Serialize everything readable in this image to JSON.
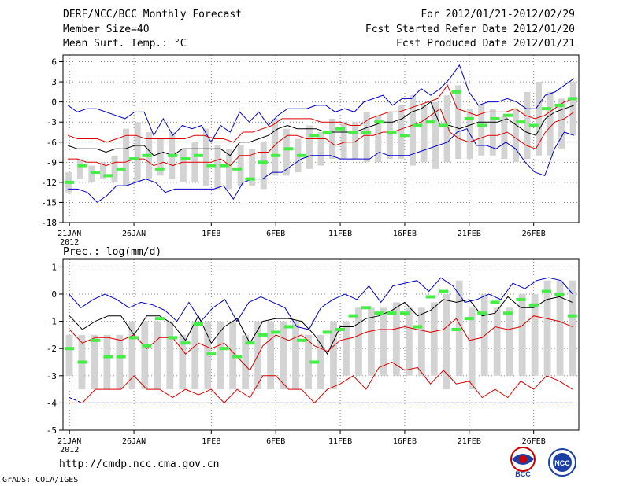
{
  "header": {
    "title": "DERF/NCC/BCC Monthly Forecast",
    "member_size": "Member Size=40",
    "variable": "Mean Surf. Temp.: °C",
    "period": "For 2012/01/21-2012/02/29",
    "start_ref": "Fcst Started Refer Date 2012/01/20",
    "produced": "Fcst Produced Date 2012/01/21"
  },
  "footer": {
    "url": "http://cmdp.ncc.cma.gov.cn",
    "credit": "GrADS: COLA/IGES",
    "logo_left": "BCC",
    "logo_right": "NCC"
  },
  "colors": {
    "envelope": "#0000cc",
    "spread": "#dd0000",
    "mean": "#000000",
    "box": "#d3d3d3",
    "obs": "#44ee44",
    "grid": "#888888"
  },
  "chart_data": [
    {
      "type": "box-ensemble",
      "title": "Mean Surf. Temp.: °C",
      "xlabel": "",
      "ylabel": "",
      "ylim": [
        -18,
        7
      ],
      "yticks": [
        6,
        3,
        0,
        -3,
        -6,
        -9,
        -12,
        -15,
        -18
      ],
      "xlim": [
        0.5,
        40.5
      ],
      "xticks": [
        {
          "day": 1,
          "label": "21JAN",
          "sub": "2012"
        },
        {
          "day": 6,
          "label": "26JAN"
        },
        {
          "day": 12,
          "label": "1FEB"
        },
        {
          "day": 17,
          "label": "6FEB"
        },
        {
          "day": 22,
          "label": "11FEB"
        },
        {
          "day": 27,
          "label": "16FEB"
        },
        {
          "day": 32,
          "label": "21FEB"
        },
        {
          "day": 37,
          "label": "26FEB"
        }
      ],
      "series": [
        {
          "name": "ensemble-max",
          "color": "#0000cc",
          "values": [
            -0.5,
            -1.5,
            -1,
            -1,
            -1.5,
            -2,
            -2.5,
            -1.5,
            -1.5,
            -5,
            -2.5,
            -5,
            -3.5,
            -4,
            -3.5,
            -6,
            -3.5,
            -4.5,
            -1.5,
            -3,
            -1.5,
            -3.5,
            -2,
            -1,
            -1,
            -1,
            -0.5,
            -0.5,
            -1.5,
            -1,
            -1.5,
            0,
            0.5,
            1,
            -0.5,
            0.5,
            0.5,
            2,
            1,
            2,
            3.5,
            5.5,
            1.5,
            -0.5,
            0,
            0,
            0.5,
            0,
            -1,
            -1,
            1,
            1.5,
            2.5,
            3.5
          ]
        },
        {
          "name": "ensemble-min",
          "color": "#0000cc",
          "values": [
            -13,
            -13,
            -13.5,
            -15,
            -14,
            -12.5,
            -12.5,
            -12,
            -11.5,
            -12,
            -13.5,
            -13,
            -13,
            -13,
            -13,
            -13,
            -12.5,
            -14.5,
            -12,
            -11.5,
            -11.5,
            -10.5,
            -10.5,
            -9.5,
            -8.5,
            -8,
            -8,
            -8,
            -8.5,
            -8.5,
            -8.5,
            -8.5,
            -7.5,
            -8,
            -8,
            -8,
            -7.5,
            -7,
            -6.5,
            -6,
            -4.5,
            -4,
            -6.5,
            -6.5,
            -7,
            -6,
            -7,
            -9,
            -10.5,
            -11,
            -7,
            -4.5,
            -5
          ]
        },
        {
          "name": "spread-upper",
          "color": "#dd0000",
          "values": [
            -5,
            -5.5,
            -5.5,
            -5.5,
            -6,
            -5.5,
            -5,
            -5,
            -5.5,
            -5.5,
            -5.5,
            -5.5,
            -5.5,
            -5,
            -5,
            -5.5,
            -5.5,
            -6,
            -4.5,
            -4.5,
            -4,
            -3.5,
            -2.5,
            -2.5,
            -2.5,
            -2.5,
            -3,
            -3,
            -3,
            -3.5,
            -3.5,
            -2.5,
            -2,
            -1.5,
            -1.5,
            -1,
            -0.5,
            0,
            0.5,
            2.5,
            -1,
            -1.5,
            -2,
            -1.5,
            -1.5,
            -1.5,
            -1,
            -2,
            -2.5,
            -2,
            -1,
            0,
            0.5
          ]
        },
        {
          "name": "spread-lower",
          "color": "#dd0000",
          "values": [
            -8.5,
            -8.5,
            -9,
            -9,
            -9.5,
            -9,
            -9,
            -8.5,
            -8.5,
            -9.5,
            -9,
            -9.5,
            -9,
            -9,
            -9,
            -9,
            -8.5,
            -9.5,
            -8,
            -8,
            -7.5,
            -7.5,
            -6,
            -5,
            -5,
            -5.5,
            -5.5,
            -5.5,
            -6.5,
            -6,
            -6,
            -5,
            -5,
            -4.5,
            -4.5,
            -4,
            -3.5,
            -3,
            -2,
            -1,
            -4.5,
            -5.5,
            -6,
            -5.5,
            -5,
            -5,
            -4.5,
            -5.5,
            -6.5,
            -7,
            -4.5,
            -3,
            -2.5,
            -1.5
          ]
        },
        {
          "name": "ensemble-mean",
          "color": "#000000",
          "values": [
            -6.5,
            -7,
            -7,
            -7,
            -7.5,
            -7,
            -7,
            -6.5,
            -6.5,
            -8,
            -7.5,
            -8,
            -7,
            -7,
            -7,
            -7,
            -7,
            -8,
            -6,
            -6,
            -5.5,
            -5,
            -4,
            -3.5,
            -4,
            -4,
            -4,
            -4.5,
            -4.5,
            -4.5,
            -4.5,
            -4,
            -3.5,
            -3,
            -3,
            -2.5,
            -1.5,
            -1,
            0,
            -3.5,
            -3.5,
            -4,
            -3.5,
            -3,
            -3,
            -3,
            -2.5,
            -3.5,
            -4.5,
            -5,
            -2.5,
            -1.5,
            -1,
            -0.5
          ]
        },
        {
          "name": "box-high",
          "values": [
            -10.5,
            -8.5,
            -9.5,
            -9,
            -8,
            -4,
            -3,
            -4.5,
            -5.5,
            -4.5,
            -7,
            -6,
            -4,
            -6.5,
            -7,
            -6.5,
            -7,
            -6,
            -2.5,
            -4,
            -5.5,
            -3.5,
            -4.5,
            -2.5,
            -3,
            -3,
            -1.5,
            -2,
            -1.5,
            -0.5,
            1,
            -0.5,
            0,
            1,
            2.5,
            -1,
            -0.5,
            -1,
            -2,
            -1,
            1.5,
            3,
            1.5,
            0.5,
            3
          ]
        },
        {
          "name": "box-low",
          "values": [
            -13.5,
            -11.5,
            -12,
            -11.5,
            -12,
            -12.5,
            -12,
            -11.5,
            -11,
            -11.5,
            -12,
            -12,
            -12.5,
            -13,
            -13,
            -12.5,
            -12.5,
            -13,
            -11,
            -11,
            -10.5,
            -10,
            -9.5,
            -8.5,
            -8.5,
            -8.5,
            -9,
            -9,
            -8.5,
            -8.5,
            -9.5,
            -9,
            -10,
            -9,
            -8.5,
            -8.5,
            -8,
            -8,
            -8.5,
            -9,
            -8.5,
            -8,
            -8,
            -7,
            -5,
            -6.5,
            -6,
            -4.5,
            -4.5
          ]
        },
        {
          "name": "observed",
          "color": "#44ee44",
          "values": [
            -12,
            -9.5,
            -10.5,
            -11,
            -10,
            -8.5,
            -8,
            -10,
            -8,
            -8.5,
            -8,
            -9.5,
            -9.5,
            -10,
            -11.5,
            -9,
            -8,
            -7,
            -8,
            -5,
            -4.5,
            -4,
            -4.5,
            -4.5,
            -3,
            -4.5,
            -5,
            -3.5,
            -3,
            -3.5,
            1.5,
            -2.5,
            -3.5,
            -2.5,
            -2,
            -3,
            -3.5,
            -1,
            -0.5,
            0.5
          ]
        }
      ]
    },
    {
      "type": "box-ensemble",
      "title": "Prec.: log(mm/d)",
      "xlabel": "",
      "ylabel": "",
      "ylim": [
        -5,
        1.3
      ],
      "yticks": [
        1,
        0,
        -1,
        -2,
        -3,
        -4,
        -5
      ],
      "xlim": [
        0.5,
        40.5
      ],
      "xticks": [
        {
          "day": 1,
          "label": "21JAN",
          "sub": "2012"
        },
        {
          "day": 6,
          "label": "26JAN"
        },
        {
          "day": 12,
          "label": "1FEB"
        },
        {
          "day": 17,
          "label": "6FEB"
        },
        {
          "day": 22,
          "label": "11FEB"
        },
        {
          "day": 27,
          "label": "16FEB"
        },
        {
          "day": 32,
          "label": "21FEB"
        },
        {
          "day": 37,
          "label": "26FEB"
        }
      ],
      "series": [
        {
          "name": "ensemble-max",
          "color": "#0000cc",
          "values": [
            0,
            -0.5,
            -0.2,
            0,
            -0.2,
            -0.5,
            -0.3,
            -0.4,
            -0.6,
            -1,
            -0.3,
            -1,
            -0.5,
            -0.2,
            -1,
            -0.3,
            -0.1,
            -0.3,
            -0.5,
            -1.2,
            -1.3,
            -0.5,
            -0.2,
            0,
            -0.2,
            0.3,
            -0.3,
            0.3,
            0.4,
            0.5,
            0.1,
            0.6,
            0.3,
            -0.3,
            -0.2,
            0,
            -0.2,
            0.4,
            0.2,
            0.5,
            0.6,
            0.5,
            0
          ]
        },
        {
          "name": "ensemble-min",
          "color": "#0000cc",
          "values": [
            -3.8,
            -4,
            -4,
            -4,
            -4,
            -4,
            -4,
            -4,
            -4,
            -4,
            -4,
            -4,
            -4,
            -4,
            -4,
            -4,
            -4,
            -4,
            -4,
            -4,
            -4,
            -4,
            -4,
            -4,
            -4,
            -4,
            -4,
            -4,
            -4,
            -4,
            -4,
            -4,
            -4,
            -4,
            -4,
            -4,
            -4,
            -4,
            -4,
            -4,
            -4
          ]
        },
        {
          "name": "spread-upper",
          "color": "#000000",
          "values": [
            -0.8,
            -1.3,
            -1,
            -0.8,
            -0.8,
            -1.5,
            -0.8,
            -0.8,
            -1.1,
            -1.7,
            -0.8,
            -1.8,
            -1.2,
            -0.9,
            -1.8,
            -1,
            -0.9,
            -0.9,
            -1,
            -1.5,
            -2.2,
            -1.2,
            -1.2,
            -0.9,
            -0.8,
            -0.6,
            -0.3,
            -0.8,
            -0.6,
            -0.2,
            -0.3,
            -0.2,
            -0.8,
            -0.7,
            -0.1,
            -0.5,
            -0.5,
            -0.2,
            -0.1,
            -0.3
          ]
        },
        {
          "name": "spread-lower-red",
          "color": "#dd0000",
          "values": [
            -1.3,
            -1.8,
            -1.6,
            -1.6,
            -1.7,
            -1.5,
            -2,
            -1.6,
            -1.6,
            -2.2,
            -1.8,
            -2,
            -1.8,
            -2.3,
            -2.8,
            -1.9,
            -1.5,
            -1.7,
            -1.5,
            -1.9,
            -2.1,
            -1.7,
            -1.6,
            -1.4,
            -1.3,
            -1.3,
            -1.2,
            -1.3,
            -1.4,
            -1.3,
            -0.9,
            -1.7,
            -1.6,
            -1.2,
            -1.3,
            -1.2,
            -0.8,
            -0.9,
            -1,
            -1.2
          ]
        },
        {
          "name": "spread-bottom-red",
          "color": "#dd0000",
          "values": [
            -4,
            -4,
            -3.5,
            -3.5,
            -3.5,
            -3,
            -3.5,
            -3.5,
            -3.8,
            -3.5,
            -3.7,
            -3.5,
            -4,
            -3.5,
            -3.8,
            -3,
            -3,
            -3.5,
            -3.5,
            -4,
            -3.5,
            -3.3,
            -3,
            -3.5,
            -2.7,
            -2.5,
            -2.8,
            -2.7,
            -3.3,
            -2.8,
            -3.3,
            -3.2,
            -3.8,
            -3.5,
            -3.8,
            -3.2,
            -3.5,
            -3,
            -3.2,
            -3.5
          ]
        },
        {
          "name": "box-high",
          "values": [
            -1.5,
            -1.5,
            -1.5,
            -1.5,
            -1.5,
            -1,
            -1,
            -1,
            -1,
            -1.5,
            -1,
            -1,
            -1,
            -1,
            -1.5,
            -1,
            -1,
            -1,
            -1,
            -1.5,
            -1.5,
            -1,
            -1,
            -0.5,
            -0.5,
            -0.5,
            -0.3,
            -0.5,
            -0.5,
            -0.3,
            0,
            0.5,
            -0.5,
            0,
            -0.5,
            -0.5,
            0,
            0,
            0.5,
            0.5,
            0.5
          ]
        },
        {
          "name": "box-low",
          "values": [
            -3,
            -3.5,
            -3.5,
            -3.5,
            -3.5,
            -3.5,
            -3.5,
            -3.5,
            -3.5,
            -3.5,
            -3.5,
            -3.5,
            -3.5,
            -3.5,
            -3.5,
            -3.5,
            -3.5,
            -3.5,
            -3.5,
            -3.5,
            -3.5,
            -3.5,
            -3,
            -3,
            -3,
            -3,
            -3,
            -3,
            -3,
            -3,
            -3.5,
            -3,
            -3.5,
            -3,
            -3,
            -3,
            -3,
            -3,
            -3,
            -3,
            -3
          ]
        },
        {
          "name": "observed",
          "color": "#44ee44",
          "values": [
            -2,
            -2.5,
            -1.7,
            -2.3,
            -2.3,
            -1.6,
            -1.9,
            -0.9,
            -1.6,
            -1.8,
            -1.1,
            -2.2,
            -2,
            -2.3,
            -1.8,
            -1.5,
            -1.4,
            -1.2,
            -1.7,
            -2.5,
            -1.4,
            -1.3,
            -0.8,
            -0.5,
            -0.7,
            -0.7,
            -0.7,
            -1.2,
            -0.1,
            0.1,
            -1.3,
            -0.9,
            -0.7,
            -0.3,
            -0.7,
            -0.2,
            -0.4,
            0.1,
            0,
            -0.8
          ]
        }
      ]
    }
  ]
}
